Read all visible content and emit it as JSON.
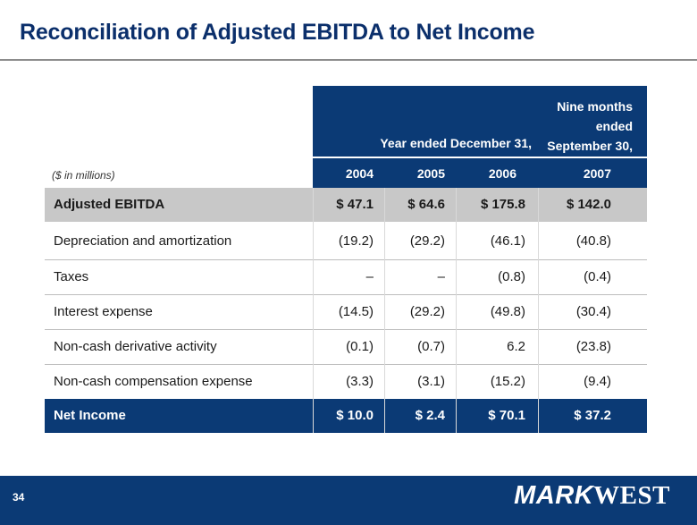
{
  "title": "Reconciliation of Adjusted EBITDA to Net Income",
  "table": {
    "header_group_year": "Year ended December 31,",
    "header_group_nine": [
      "Nine months",
      "ended",
      "September 30,"
    ],
    "units": "($ in millions)",
    "years": [
      "2004",
      "2005",
      "2006",
      "2007"
    ],
    "rows": [
      {
        "label": "Adjusted EBITDA",
        "values": [
          "$  47.1",
          "$  64.6",
          "$ 175.8",
          "$ 142.0"
        ]
      },
      {
        "label": "Depreciation and amortization",
        "values": [
          "(19.2)",
          "(29.2)",
          "(46.1)",
          "(40.8)"
        ]
      },
      {
        "label": "Taxes",
        "values": [
          "–",
          "–",
          "(0.8)",
          "(0.4)"
        ]
      },
      {
        "label": "Interest expense",
        "values": [
          "(14.5)",
          "(29.2)",
          "(49.8)",
          "(30.4)"
        ]
      },
      {
        "label": "Non-cash derivative activity",
        "values": [
          "(0.1)",
          "(0.7)",
          "6.2",
          "(23.8)"
        ]
      },
      {
        "label": "Non-cash compensation expense",
        "values": [
          "(3.3)",
          "(3.1)",
          "(15.2)",
          "(9.4)"
        ]
      },
      {
        "label": "Net Income",
        "values": [
          "$  10.0",
          "$  2.4",
          "$  70.1",
          "$  37.2"
        ]
      }
    ]
  },
  "footer": {
    "page_number": "34",
    "logo_mark": "MARK",
    "logo_west": "WEST"
  },
  "colors": {
    "navy": "#0b3a75",
    "title": "#0b2f6b",
    "shade": "#c8c8c8"
  }
}
